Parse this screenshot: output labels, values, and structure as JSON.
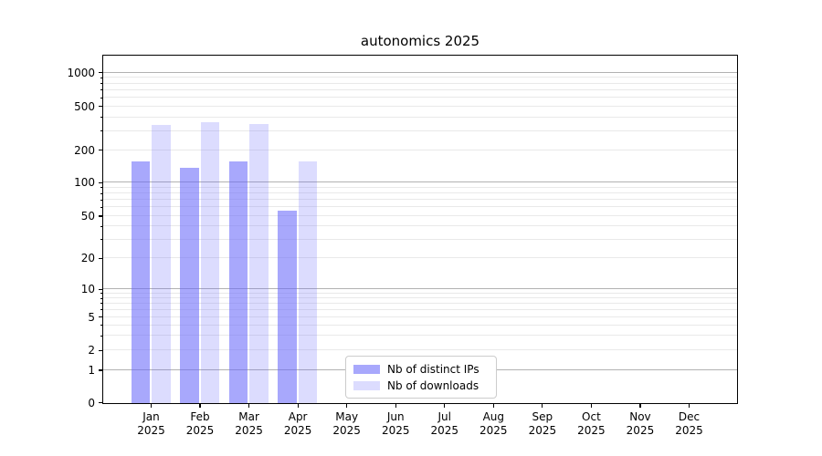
{
  "chart_data": {
    "type": "bar",
    "title": "autonomics 2025",
    "categories": [
      "Jan",
      "Feb",
      "Mar",
      "Apr",
      "May",
      "Jun",
      "Jul",
      "Aug",
      "Sep",
      "Oct",
      "Nov",
      "Dec"
    ],
    "category_year": "2025",
    "series": [
      {
        "name": "Nb of distinct IPs",
        "fill": "rgba(102,102,250,0.57)",
        "approx_hex": "#a8a8f7",
        "values": [
          160,
          140,
          160,
          57,
          0,
          0,
          0,
          0,
          0,
          0,
          0,
          0
        ]
      },
      {
        "name": "Nb of downloads",
        "fill": "rgba(102,102,250,0.23)",
        "approx_hex": "#dcdcfa",
        "values": [
          345,
          365,
          350,
          158,
          0,
          0,
          0,
          0,
          0,
          0,
          0,
          0
        ]
      }
    ],
    "yticks": [
      0,
      1,
      2,
      5,
      10,
      20,
      50,
      100,
      200,
      500,
      1000
    ],
    "ylim": [
      0,
      1400
    ],
    "yscale": "symlog",
    "ytick_fractions": {
      "0": 0,
      "1": 0.0936,
      "2": 0.1503,
      "5": 0.2463,
      "10": 0.3273,
      "20": 0.4162,
      "50": 0.5381,
      "100": 0.6348,
      "200": 0.7281,
      "500": 0.8544,
      "1000": 0.9521
    },
    "grid": {
      "major_lines": [
        1,
        10,
        100,
        1000
      ],
      "major_color": "#b2b2b2",
      "minor_color": "#e9e9e9",
      "minor_on": true
    },
    "legend_position": "lower center-left",
    "axis_color": "#000000",
    "background": "#ffffff"
  }
}
